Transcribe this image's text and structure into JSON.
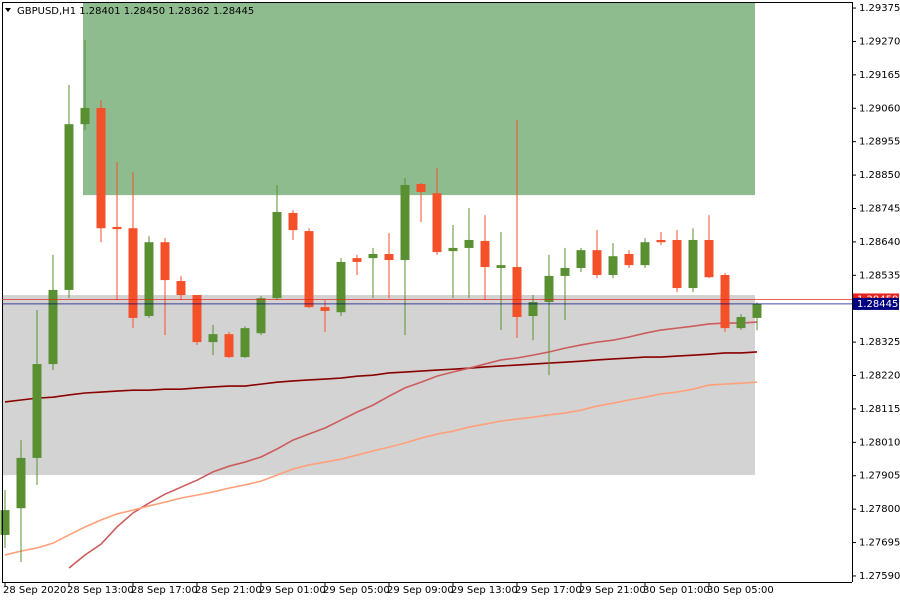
{
  "chart_data": {
    "type": "candlestick",
    "title": "GBPUSD,H1  1.28401 1.28450 1.28362 1.28445",
    "categories": [
      "28 Sep 2020",
      null,
      null,
      null,
      "28 Sep 13:00",
      null,
      null,
      null,
      "28 Sep 17:00",
      null,
      null,
      null,
      "28 Sep 21:00",
      null,
      null,
      null,
      "29 Sep 01:00",
      null,
      null,
      null,
      "29 Sep 05:00",
      null,
      null,
      null,
      "29 Sep 09:00",
      null,
      null,
      null,
      "29 Sep 13:00",
      null,
      null,
      null,
      "29 Sep 17:00",
      null,
      null,
      null,
      "29 Sep 21:00",
      null,
      null,
      null,
      "30 Sep 01:00",
      null,
      null,
      null,
      "30 Sep 05:00",
      null,
      null,
      null
    ],
    "open": [
      1.27719,
      1.27803,
      1.27961,
      1.28256,
      1.28489,
      1.2901,
      1.29061,
      1.28687,
      1.28683,
      1.28407,
      1.28639,
      1.28517,
      1.28473,
      1.28325,
      1.2835,
      1.28278,
      1.28353,
      1.28463,
      1.28731,
      1.28674,
      1.28435,
      1.28419,
      1.28589,
      1.28589,
      1.28602,
      1.28583,
      1.28822,
      1.28793,
      1.28611,
      1.28621,
      1.28643,
      1.28558,
      1.28561,
      1.28407,
      1.28451,
      1.28533,
      1.28558,
      1.28614,
      1.28536,
      1.28602,
      1.28567,
      1.28646,
      1.28646,
      1.28495,
      1.28646,
      1.28536,
      1.28369,
      1.28401
    ],
    "high": [
      1.2786,
      1.28017,
      1.28426,
      1.28599,
      1.29133,
      1.29274,
      1.29086,
      1.28891,
      1.28859,
      1.28658,
      1.28652,
      1.28533,
      1.28473,
      1.28379,
      1.28357,
      1.28375,
      1.2847,
      1.28819,
      1.2874,
      1.28683,
      1.28457,
      1.28589,
      1.28599,
      1.28621,
      1.28668,
      1.28841,
      1.28825,
      1.28872,
      1.28693,
      1.28746,
      1.28724,
      1.28671,
      1.29023,
      1.28473,
      1.28599,
      1.28621,
      1.28621,
      1.28677,
      1.28636,
      1.28614,
      1.28652,
      1.28671,
      1.28677,
      1.28683,
      1.28724,
      1.28542,
      1.28413,
      1.2845
    ],
    "low": [
      1.27678,
      1.27634,
      1.27876,
      1.28237,
      1.28463,
      1.28991,
      1.28639,
      1.28457,
      1.28369,
      1.28401,
      1.28347,
      1.28457,
      1.28316,
      1.28284,
      1.28275,
      1.28275,
      1.28347,
      1.28457,
      1.28646,
      1.28432,
      1.28357,
      1.28407,
      1.28536,
      1.28463,
      1.28463,
      1.28347,
      1.28702,
      1.28599,
      1.28463,
      1.28463,
      1.28457,
      1.28363,
      1.28338,
      1.28331,
      1.28221,
      1.28394,
      1.28545,
      1.28526,
      1.28526,
      1.28558,
      1.28558,
      1.2863,
      1.28482,
      1.28482,
      1.28526,
      1.28357,
      1.28363,
      1.28362
    ],
    "close": [
      1.27797,
      1.27961,
      1.28256,
      1.28489,
      1.2901,
      1.29061,
      1.28683,
      1.2868,
      1.28401,
      1.28639,
      1.2852,
      1.28473,
      1.28325,
      1.2835,
      1.28278,
      1.28369,
      1.28463,
      1.28734,
      1.28677,
      1.28435,
      1.28423,
      1.28577,
      1.28577,
      1.28602,
      1.28583,
      1.28819,
      1.28797,
      1.28608,
      1.28621,
      1.28646,
      1.28561,
      1.28567,
      1.28404,
      1.28451,
      1.28533,
      1.28558,
      1.28614,
      1.28536,
      1.28595,
      1.28567,
      1.28639,
      1.28639,
      1.28495,
      1.28646,
      1.28529,
      1.28369,
      1.28404,
      1.28445
    ],
    "up_color": "#5a8f32",
    "down_color": "#f4502a",
    "lines": [
      {
        "color": "#8b0000",
        "values": [
          1.28137,
          1.28143,
          1.28149,
          1.28152,
          1.28159,
          1.28165,
          1.28168,
          1.28171,
          1.28174,
          1.28174,
          1.28177,
          1.28177,
          1.28181,
          1.28184,
          1.28187,
          1.28187,
          1.28193,
          1.28199,
          1.28203,
          1.28206,
          1.28209,
          1.28212,
          1.28218,
          1.28221,
          1.28228,
          1.28231,
          1.28234,
          1.28237,
          1.2824,
          1.28243,
          1.28247,
          1.2825,
          1.28253,
          1.28256,
          1.28259,
          1.28262,
          1.28265,
          1.28269,
          1.28272,
          1.28275,
          1.28278,
          1.28278,
          1.28281,
          1.28284,
          1.28287,
          1.28291,
          1.28291,
          1.28294
        ]
      },
      {
        "color": "#cd5c5c",
        "values": [
          null,
          null,
          null,
          null,
          1.27615,
          1.27656,
          1.2769,
          1.27744,
          1.27788,
          1.27819,
          1.27847,
          1.27869,
          1.27891,
          1.27917,
          1.27935,
          1.27948,
          1.27964,
          1.27989,
          1.28017,
          1.28036,
          1.28055,
          1.2808,
          1.28105,
          1.28127,
          1.28155,
          1.28181,
          1.28199,
          1.28218,
          1.28231,
          1.28243,
          1.28256,
          1.28269,
          1.28275,
          1.28284,
          1.28294,
          1.28306,
          1.28316,
          1.28325,
          1.28331,
          1.28341,
          1.28353,
          1.28363,
          1.28369,
          1.28375,
          1.28382,
          1.28385,
          1.28385,
          1.28388
        ]
      },
      {
        "color": "#ffa07a",
        "values": [
          1.27656,
          1.27668,
          1.27678,
          1.27693,
          1.27719,
          1.27744,
          1.27766,
          1.27785,
          1.27797,
          1.2781,
          1.27822,
          1.27835,
          1.27844,
          1.27854,
          1.27866,
          1.27876,
          1.27888,
          1.27907,
          1.27926,
          1.27939,
          1.27948,
          1.27957,
          1.2797,
          1.27983,
          1.27995,
          1.28008,
          1.28023,
          1.28036,
          1.28045,
          1.28058,
          1.28067,
          1.28077,
          1.28083,
          1.28089,
          1.28096,
          1.28102,
          1.28111,
          1.28124,
          1.28133,
          1.28143,
          1.28152,
          1.28162,
          1.28168,
          1.28177,
          1.2819,
          1.28193,
          1.28196,
          1.28199
        ]
      }
    ],
    "zones": [
      {
        "color": "#8fbc8f",
        "ylim": [
          1.28787,
          1.29394
        ]
      },
      {
        "color": "#d3d3d3",
        "ylim": [
          1.27907,
          1.28473
        ]
      }
    ],
    "price_lines": [
      {
        "value": 1.28459,
        "color": "#e8201e"
      },
      {
        "value": 1.28445,
        "color": "#000080"
      }
    ],
    "ylim": [
      1.27571,
      1.29394
    ],
    "yticks": [
      1.29375,
      {
        "value": 1.2927,
        "label": "1.29270"
      },
      1.29165,
      {
        "value": 1.2906,
        "label": "1.29060"
      },
      1.28955,
      {
        "value": 1.2885,
        "label": "1.28850"
      },
      1.28745,
      {
        "value": 1.2864,
        "label": "1.28640"
      },
      1.28535,
      1.28325,
      {
        "value": 1.2822,
        "label": "1.28220"
      },
      1.28115,
      {
        "value": 1.2801,
        "label": "1.28010"
      },
      1.27905,
      {
        "value": 1.278,
        "label": "1.27800"
      },
      1.27695,
      {
        "value": 1.2759,
        "label": "1.27590"
      }
    ]
  }
}
